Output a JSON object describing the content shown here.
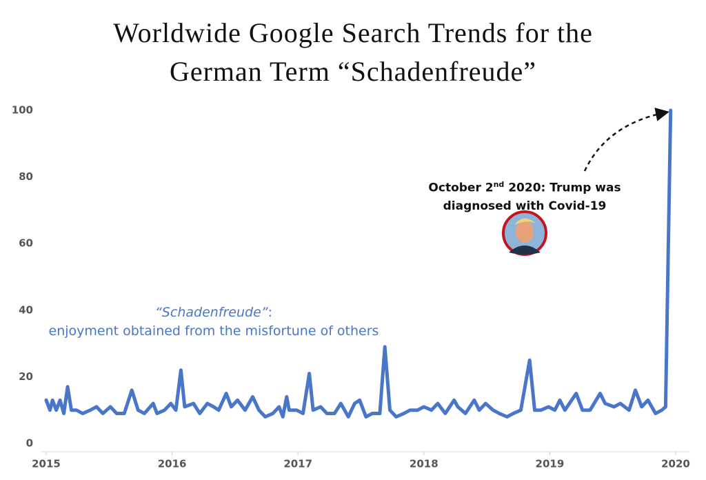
{
  "chart_data": {
    "type": "line",
    "title": "Worldwide Google Search Trends for the German Term “Schadenfreude”",
    "annotation": {
      "parts": [
        "October 2",
        "nd",
        " 2020: Trump was diagnosed with Covid-19"
      ]
    },
    "definition": {
      "term": "“Schadenfreude”",
      "separator": ":",
      "text": "enjoyment obtained from the misfortune of others"
    },
    "xlim": [
      2015,
      2020
    ],
    "xticks": [
      2015,
      2016,
      2017,
      2018,
      2019,
      2020
    ],
    "ylim": [
      0,
      100
    ],
    "yticks": [
      0,
      20,
      40,
      60,
      80,
      100
    ],
    "grid": false,
    "x": [
      2015.0,
      2015.03,
      2015.05,
      2015.08,
      2015.11,
      2015.14,
      2015.17,
      2015.2,
      2015.24,
      2015.29,
      2015.35,
      2015.4,
      2015.45,
      2015.51,
      2015.56,
      2015.62,
      2015.68,
      2015.73,
      2015.78,
      2015.85,
      2015.88,
      2015.94,
      2015.99,
      2016.03,
      2016.07,
      2016.1,
      2016.17,
      2016.22,
      2016.28,
      2016.33,
      2016.37,
      2016.43,
      2016.47,
      2016.52,
      2016.58,
      2016.64,
      2016.69,
      2016.74,
      2016.8,
      2016.85,
      2016.88,
      2016.91,
      2016.93,
      2016.99,
      2017.04,
      2017.09,
      2017.12,
      2017.18,
      2017.23,
      2017.29,
      2017.34,
      2017.4,
      2017.45,
      2017.49,
      2017.54,
      2017.59,
      2017.65,
      2017.69,
      2017.73,
      2017.78,
      2017.84,
      2017.89,
      2017.95,
      2018.0,
      2018.06,
      2018.11,
      2018.17,
      2018.24,
      2018.27,
      2018.33,
      2018.4,
      2018.44,
      2018.49,
      2018.55,
      2018.6,
      2018.66,
      2018.71,
      2018.77,
      2018.84,
      2018.88,
      2018.93,
      2018.99,
      2019.04,
      2019.08,
      2019.12,
      2019.21,
      2019.26,
      2019.32,
      2019.4,
      2019.44,
      2019.51,
      2019.56,
      2019.63,
      2019.68,
      2019.73,
      2019.78,
      2019.84,
      2019.89,
      2019.92,
      2019.96
    ],
    "series": [
      {
        "name": "Schadenfreude",
        "color": "#4a76c9",
        "values": [
          13,
          10,
          13,
          10,
          13,
          9,
          17,
          10,
          10,
          9,
          10,
          11,
          9,
          11,
          9,
          9,
          16,
          10,
          9,
          12,
          9,
          10,
          12,
          10,
          22,
          11,
          12,
          9,
          12,
          11,
          10,
          15,
          11,
          13,
          10,
          14,
          10,
          8,
          9,
          11,
          8,
          14,
          10,
          10,
          9,
          21,
          10,
          11,
          9,
          9,
          12,
          8,
          12,
          13,
          8,
          9,
          9,
          29,
          10,
          8,
          9,
          10,
          10,
          11,
          10,
          12,
          9,
          13,
          11,
          9,
          13,
          10,
          12,
          10,
          9,
          8,
          9,
          10,
          25,
          10,
          10,
          11,
          10,
          13,
          10,
          15,
          10,
          10,
          15,
          12,
          11,
          12,
          10,
          16,
          11,
          13,
          9,
          10,
          11,
          100
        ]
      }
    ]
  }
}
